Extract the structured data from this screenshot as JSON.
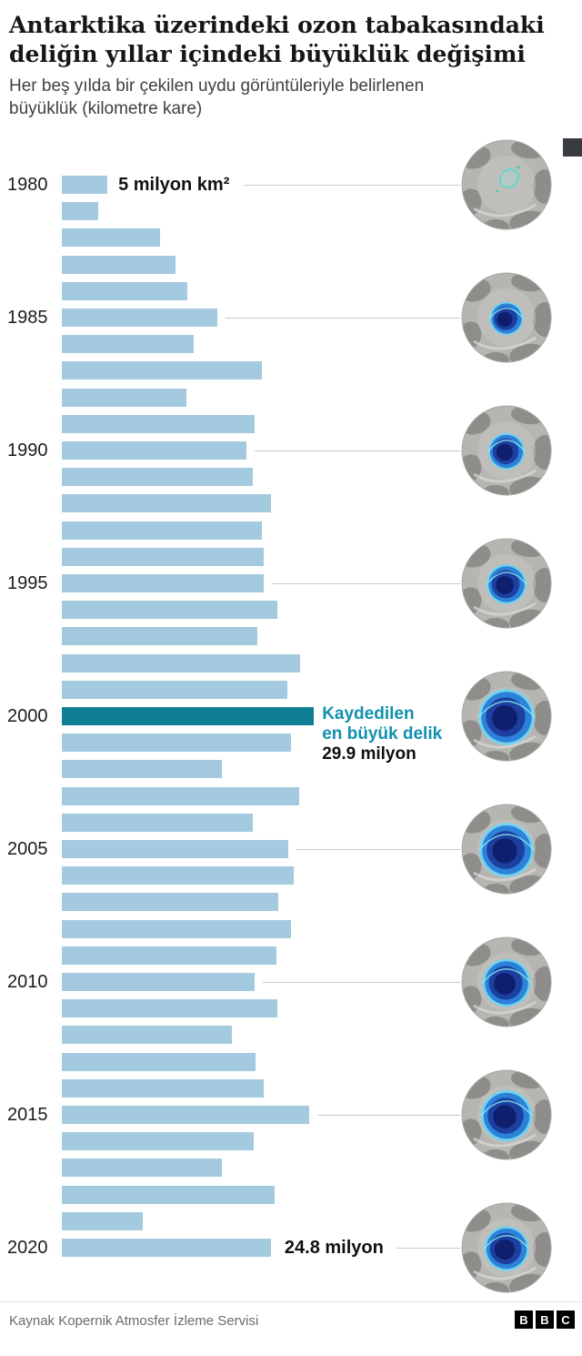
{
  "header": {
    "title_lines": [
      "Antarktika üzerindeki ozon tabakasındaki",
      "deliğin yıllar içindeki büyüklük değişimi"
    ],
    "subtitle_lines": [
      "Her beş yılda bir çekilen uydu görüntüleriyle belirlenen",
      "büyüklük (kilometre kare)"
    ]
  },
  "chart_data": {
    "type": "bar",
    "orientation": "horizontal",
    "title": "Antarktika üzerindeki ozon tabakasındaki deliğin yıllar içindeki büyüklük değişimi",
    "unit": "milyon km²",
    "years": [
      1980,
      1981,
      1982,
      1983,
      1984,
      1985,
      1986,
      1987,
      1988,
      1989,
      1990,
      1991,
      1992,
      1993,
      1994,
      1995,
      1996,
      1997,
      1998,
      1999,
      2000,
      2001,
      2002,
      2003,
      2004,
      2005,
      2006,
      2007,
      2008,
      2009,
      2010,
      2011,
      2012,
      2013,
      2014,
      2015,
      2016,
      2017,
      2018,
      2019,
      2020
    ],
    "values": [
      5.4,
      4.3,
      11.6,
      13.5,
      14.9,
      18.4,
      15.6,
      23.7,
      14.8,
      22.9,
      21.9,
      22.6,
      24.8,
      23.7,
      23.9,
      23.9,
      25.6,
      23.2,
      28.3,
      26.7,
      29.9,
      27.2,
      19.0,
      28.2,
      22.6,
      26.9,
      27.5,
      25.7,
      27.2,
      25.4,
      22.9,
      25.6,
      20.2,
      23.0,
      23.9,
      29.3,
      22.8,
      19.0,
      25.2,
      9.6,
      24.8
    ],
    "highlight_year": 2000,
    "tick_years": [
      1980,
      1985,
      1990,
      1995,
      2000,
      2005,
      2010,
      2015,
      2020
    ],
    "xlim": [
      0,
      31
    ],
    "grid": false,
    "annotations": [
      {
        "year": 1980,
        "text": "5 milyon km²"
      },
      {
        "year": 2000,
        "label_lines": [
          "Kaydedilen",
          "en büyük delik"
        ],
        "value_text": "29.9 milyon"
      },
      {
        "year": 2020,
        "text": "24.8 milyon"
      }
    ]
  },
  "satellite_images": {
    "years": [
      1980,
      1985,
      1990,
      1995,
      2000,
      2005,
      2010,
      2015,
      2020
    ],
    "hole_scale": [
      0.25,
      0.42,
      0.46,
      0.5,
      0.7,
      0.68,
      0.6,
      0.64,
      0.56
    ],
    "first_is_outline_only": true
  },
  "colors": {
    "bar": "#a3cade",
    "bar_highlight": "#0e7e93",
    "annotation_teal": "#1191ae",
    "connector": "#c9c9c9"
  },
  "footer": {
    "source": "Kaynak Kopernik Atmosfer İzleme Servisi",
    "logo_letters": [
      "B",
      "B",
      "C"
    ]
  }
}
